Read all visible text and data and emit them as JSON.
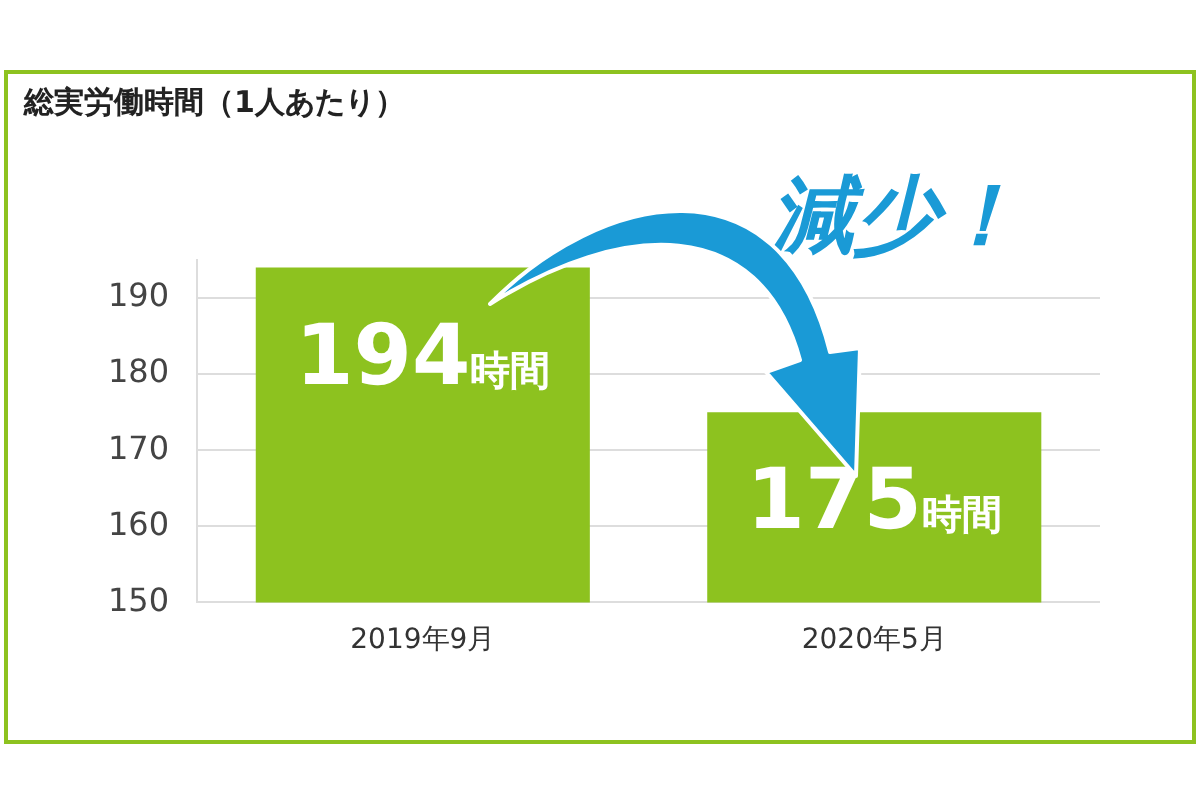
{
  "chart_data": {
    "type": "bar",
    "title": "総実労働時間（1人あたり）",
    "categories": [
      "2019年9月",
      "2020年5月"
    ],
    "values": [
      194,
      175
    ],
    "value_labels": [
      "194時間",
      "175時間"
    ],
    "color": "#8dc21f",
    "ylim": [
      150,
      195
    ],
    "yticks": [
      150,
      160,
      170,
      180,
      190
    ],
    "grid": "y",
    "legend": false,
    "annotations": [
      "減少！"
    ]
  }
}
